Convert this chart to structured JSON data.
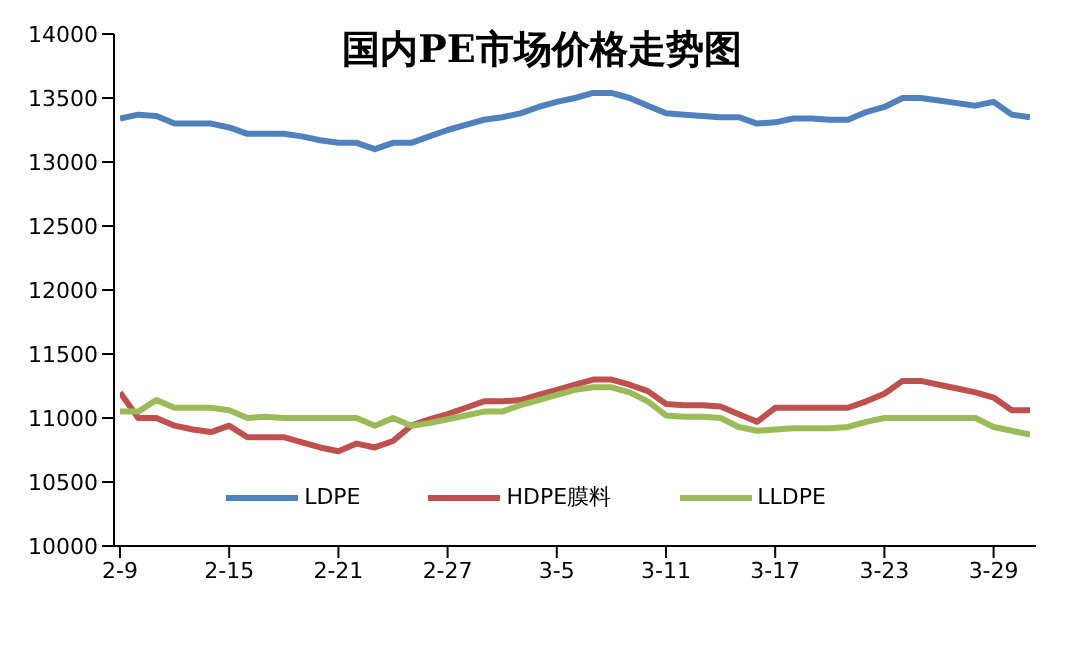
{
  "chart_data": {
    "type": "line",
    "title": "国内PE市场价格走势图",
    "categories": [
      "2-9",
      null,
      null,
      null,
      null,
      null,
      "2-15",
      null,
      null,
      null,
      null,
      null,
      "2-21",
      null,
      null,
      null,
      null,
      null,
      "2-27",
      null,
      null,
      null,
      null,
      null,
      "3-5",
      null,
      null,
      null,
      null,
      null,
      "3-11",
      null,
      null,
      null,
      null,
      null,
      "3-17",
      null,
      null,
      null,
      null,
      null,
      "3-23",
      null,
      null,
      null,
      null,
      null,
      "3-29",
      null,
      null
    ],
    "series": [
      {
        "name": "LDPE",
        "color": "#4f81bd",
        "values": [
          13340,
          13370,
          13360,
          13300,
          13300,
          13300,
          13270,
          13220,
          13220,
          13220,
          13200,
          13170,
          13150,
          13150,
          13100,
          13150,
          13150,
          13200,
          13250,
          13290,
          13330,
          13350,
          13380,
          13430,
          13470,
          13500,
          13540,
          13540,
          13500,
          13440,
          13380,
          13370,
          13360,
          13350,
          13350,
          13300,
          13310,
          13340,
          13340,
          13330,
          13330,
          13390,
          13430,
          13500,
          13500,
          13480,
          13460,
          13440,
          13470,
          13370,
          13350
        ]
      },
      {
        "name": "HDPE膜料",
        "color": "#c0504d",
        "values": [
          11200,
          11000,
          11000,
          10940,
          10910,
          10890,
          10940,
          10850,
          10850,
          10850,
          10810,
          10770,
          10740,
          10800,
          10770,
          10820,
          10940,
          10990,
          11030,
          11080,
          11130,
          11130,
          11140,
          11180,
          11220,
          11260,
          11300,
          11300,
          11260,
          11210,
          11110,
          11100,
          11100,
          11090,
          11030,
          10970,
          11080,
          11080,
          11080,
          11080,
          11080,
          11130,
          11190,
          11290,
          11290,
          11260,
          11230,
          11200,
          11160,
          11060,
          11060
        ]
      },
      {
        "name": "LLDPE",
        "color": "#9bbb59",
        "values": [
          11050,
          11050,
          11140,
          11080,
          11080,
          11080,
          11060,
          11000,
          11010,
          11000,
          11000,
          11000,
          11000,
          11000,
          10940,
          11000,
          10940,
          10960,
          10990,
          11020,
          11050,
          11050,
          11100,
          11140,
          11180,
          11220,
          11240,
          11240,
          11200,
          11130,
          11020,
          11010,
          11010,
          11000,
          10930,
          10900,
          10910,
          10920,
          10920,
          10920,
          10930,
          10970,
          11000,
          11000,
          11000,
          11000,
          11000,
          11000,
          10930,
          10900,
          10870
        ]
      }
    ],
    "ylim": [
      10000,
      14000
    ],
    "yticks": [
      10000,
      10500,
      11000,
      11500,
      12000,
      12500,
      13000,
      13500,
      14000
    ],
    "legend": "bottom",
    "marker": "none",
    "line_style": "solid"
  }
}
